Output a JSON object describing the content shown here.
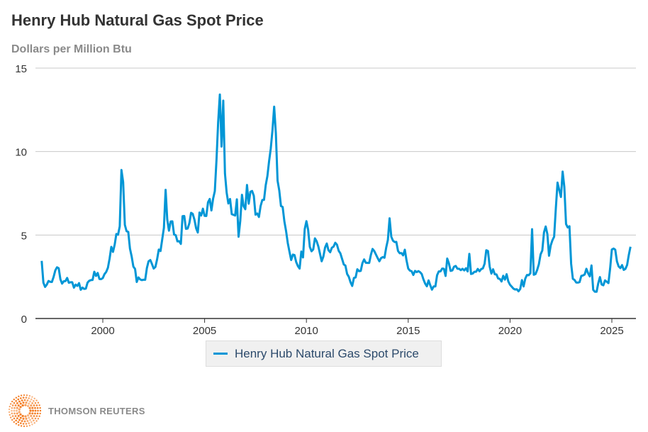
{
  "title": "Henry Hub Natural Gas Spot Price",
  "subtitle": "Dollars per Million Btu",
  "brand": "THOMSON REUTERS",
  "colors": {
    "series": "#0096d6",
    "grid": "#c8c8c8",
    "brand_orange": "#f47b20"
  },
  "chart_data": {
    "type": "line",
    "title": "Henry Hub Natural Gas Spot Price",
    "ylabel": "Dollars per Million Btu",
    "xlabel": "",
    "ylim": [
      0,
      15
    ],
    "yticks": [
      "0",
      "5",
      "10",
      "15"
    ],
    "xticks": [
      "2000",
      "2005",
      "2010",
      "2015",
      "2020",
      "2025"
    ],
    "grid": true,
    "legend_position": "bottom",
    "frequency": "monthly",
    "series": [
      {
        "name": "Henry Hub Natural Gas Spot Price",
        "values_by_year": {
          "1997": [
            3.45,
            2.15,
            1.89,
            2.03,
            2.25,
            2.2,
            2.19,
            2.49,
            2.88,
            3.07,
            3.01,
            2.35
          ],
          "1998": [
            2.09,
            2.23,
            2.24,
            2.43,
            2.14,
            2.17,
            2.17,
            1.85,
            2.03,
            1.95,
            2.12,
            1.72
          ],
          "1999": [
            1.85,
            1.77,
            1.79,
            2.15,
            2.26,
            2.3,
            2.31,
            2.8,
            2.55,
            2.73,
            2.37,
            2.36
          ],
          "2000": [
            2.42,
            2.66,
            2.79,
            3.04,
            3.59,
            4.29,
            3.99,
            4.43,
            5.06,
            5.02,
            5.52,
            8.9
          ],
          "2001": [
            8.17,
            5.61,
            5.23,
            5.19,
            4.19,
            3.72,
            3.11,
            2.97,
            2.19,
            2.46,
            2.34,
            2.3
          ],
          "2002": [
            2.32,
            2.32,
            3.03,
            3.43,
            3.5,
            3.26,
            2.99,
            3.09,
            3.55,
            4.13,
            4.04,
            4.74
          ],
          "2003": [
            5.43,
            7.71,
            5.93,
            5.26,
            5.81,
            5.82,
            5.03,
            4.99,
            4.62,
            4.63,
            4.47,
            6.13
          ],
          "2004": [
            6.14,
            5.37,
            5.39,
            5.71,
            6.33,
            6.27,
            5.93,
            5.41,
            5.15,
            6.35,
            6.17,
            6.58
          ],
          "2005": [
            6.15,
            6.14,
            6.96,
            7.16,
            6.47,
            7.18,
            7.63,
            9.53,
            11.75,
            13.42,
            10.3,
            13.05
          ],
          "2006": [
            8.69,
            7.54,
            6.89,
            7.16,
            6.25,
            6.21,
            6.17,
            7.14,
            4.9,
            5.85,
            7.41,
            6.73
          ],
          "2007": [
            6.55,
            8.0,
            6.88,
            7.59,
            7.64,
            7.35,
            6.22,
            6.29,
            6.08,
            6.74,
            7.1,
            7.11
          ],
          "2008": [
            7.99,
            8.54,
            9.41,
            10.18,
            11.27,
            12.69,
            11.09,
            8.26,
            7.67,
            6.74,
            6.68,
            5.82
          ],
          "2009": [
            5.24,
            4.52,
            4.0,
            3.5,
            3.83,
            3.8,
            3.38,
            3.14,
            2.99,
            4.01,
            3.66,
            5.35
          ],
          "2010": [
            5.83,
            5.32,
            4.29,
            4.03,
            4.14,
            4.8,
            4.63,
            4.32,
            3.89,
            3.43,
            3.71,
            4.25
          ],
          "2011": [
            4.49,
            4.09,
            3.97,
            4.24,
            4.31,
            4.54,
            4.42,
            4.06,
            3.9,
            3.57,
            3.24,
            3.17
          ],
          "2012": [
            2.67,
            2.5,
            2.17,
            1.95,
            2.43,
            2.46,
            2.95,
            2.84,
            2.85,
            3.32,
            3.54,
            3.34
          ],
          "2013": [
            3.33,
            3.33,
            3.81,
            4.17,
            4.04,
            3.83,
            3.62,
            3.43,
            3.62,
            3.68,
            3.64,
            4.24
          ],
          "2014": [
            4.71,
            6.0,
            4.9,
            4.66,
            4.58,
            4.59,
            4.05,
            3.91,
            3.92,
            3.78,
            4.12,
            3.48
          ],
          "2015": [
            2.99,
            2.87,
            2.83,
            2.61,
            2.85,
            2.78,
            2.84,
            2.77,
            2.66,
            2.34,
            2.09,
            1.93
          ],
          "2016": [
            2.28,
            1.99,
            1.73,
            1.92,
            1.92,
            2.59,
            2.82,
            2.82,
            2.99,
            2.98,
            2.55,
            3.59
          ],
          "2017": [
            3.3,
            2.85,
            2.88,
            3.1,
            3.15,
            2.98,
            2.98,
            2.9,
            2.98,
            2.88,
            3.01,
            2.82
          ],
          "2018": [
            3.87,
            2.67,
            2.69,
            2.8,
            2.8,
            2.97,
            2.83,
            2.96,
            3.0,
            3.28,
            4.09,
            4.04
          ],
          "2019": [
            3.11,
            2.69,
            2.95,
            2.65,
            2.64,
            2.4,
            2.37,
            2.22,
            2.56,
            2.33,
            2.65,
            2.22
          ],
          "2020": [
            2.02,
            1.91,
            1.79,
            1.74,
            1.75,
            1.63,
            1.77,
            2.3,
            1.92,
            2.39,
            2.61,
            2.59
          ],
          "2021": [
            2.71,
            5.35,
            2.62,
            2.66,
            2.91,
            3.26,
            3.84,
            4.07,
            5.16,
            5.51,
            5.05,
            3.76
          ],
          "2022": [
            4.38,
            4.69,
            4.9,
            6.6,
            8.14,
            7.7,
            7.28,
            8.8,
            7.88,
            5.66,
            5.45,
            5.53
          ],
          "2023": [
            3.27,
            2.38,
            2.31,
            2.16,
            2.15,
            2.18,
            2.55,
            2.58,
            2.64,
            2.98,
            2.71,
            2.52
          ],
          "2024": [
            3.18,
            1.72,
            1.6,
            1.6,
            2.12,
            2.48,
            2.04,
            1.99,
            2.28,
            2.2,
            2.12,
            3.01
          ],
          "2025": [
            4.13,
            4.19,
            4.12,
            3.42,
            3.12,
            3.02,
            3.2,
            2.91,
            2.97,
            3.2,
            3.8,
            4.3
          ]
        }
      }
    ]
  }
}
